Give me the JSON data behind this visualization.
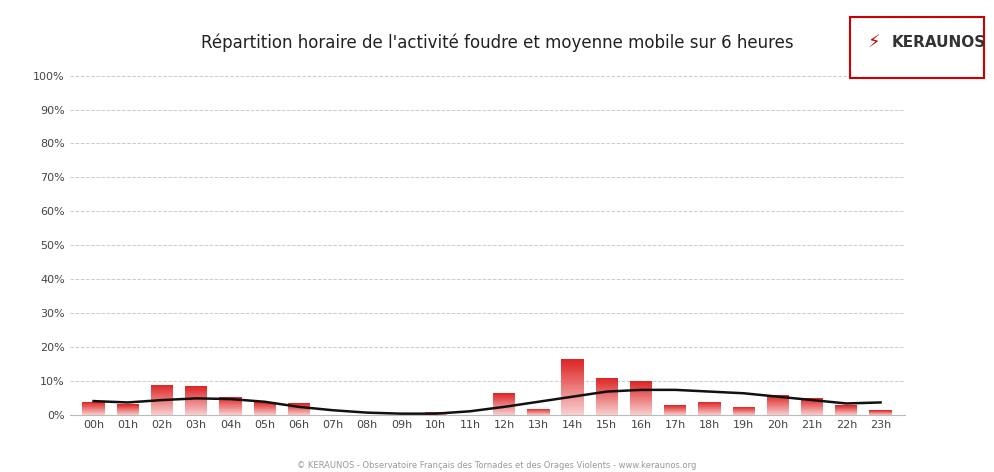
{
  "title": "Répartition horaire de l'activité foudre et moyenne mobile sur 6 heures",
  "hours": [
    "00h",
    "01h",
    "02h",
    "03h",
    "04h",
    "05h",
    "06h",
    "07h",
    "08h",
    "09h",
    "10h",
    "11h",
    "12h",
    "13h",
    "14h",
    "15h",
    "16h",
    "17h",
    "18h",
    "19h",
    "20h",
    "21h",
    "22h",
    "23h"
  ],
  "bar_values": [
    4.0,
    3.2,
    9.0,
    8.5,
    5.5,
    4.0,
    3.5,
    0.0,
    0.0,
    0.0,
    1.0,
    0.0,
    6.5,
    2.0,
    16.5,
    11.0,
    10.0,
    3.0,
    4.0,
    2.5,
    6.0,
    5.0,
    3.0,
    1.5
  ],
  "moving_avg": [
    4.2,
    3.8,
    4.5,
    5.0,
    4.8,
    4.0,
    2.5,
    1.5,
    0.8,
    0.5,
    0.5,
    1.2,
    2.5,
    4.0,
    5.5,
    7.0,
    7.5,
    7.5,
    7.0,
    6.5,
    5.5,
    4.5,
    3.5,
    3.8
  ],
  "bar_color_top": "#dd2222",
  "bar_color_bottom": "#f8d0d0",
  "line_color": "#111111",
  "background_color": "#ffffff",
  "grid_color": "#cccccc",
  "yticks": [
    0,
    10,
    20,
    30,
    40,
    50,
    60,
    70,
    80,
    90,
    100
  ],
  "ytick_labels": [
    "0%",
    "10%",
    "20%",
    "30%",
    "40%",
    "50%",
    "60%",
    "70%",
    "80%",
    "90%",
    "100%"
  ],
  "ylim": [
    0,
    100
  ],
  "footer_text": "© KERAUNOS - Observatoire Français des Tornades et des Orages Violents - www.keraunos.org",
  "keraunos_text": "KERAUNOS",
  "title_fontsize": 12,
  "axis_fontsize": 8,
  "logo_bolt_color": "#cc0000",
  "logo_border_color": "#cc0000",
  "logo_text_color": "#333333"
}
